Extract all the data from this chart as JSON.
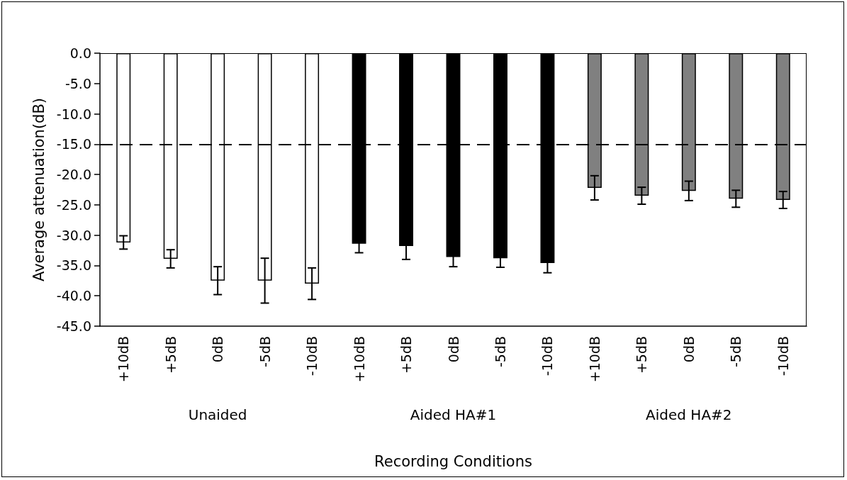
{
  "chart_data": {
    "type": "bar",
    "xlabel": "Recording Conditions",
    "ylabel": "Average attenuation(dB)",
    "categories": [
      "+10dB",
      "+5dB",
      "0dB",
      "-5dB",
      "-10dB",
      "+10dB",
      "+5dB",
      "0dB",
      "-5dB",
      "-10dB",
      "+10dB",
      "+5dB",
      "0dB",
      "-5dB",
      "-10dB"
    ],
    "values": [
      -31.2,
      -33.9,
      -37.5,
      -37.5,
      -38.0,
      -31.4,
      -31.8,
      -33.6,
      -33.8,
      -34.6,
      -22.2,
      -23.5,
      -22.7,
      -24.0,
      -24.2
    ],
    "errors": [
      1.1,
      1.5,
      2.3,
      3.7,
      2.6,
      1.5,
      2.2,
      1.6,
      1.5,
      1.6,
      2.0,
      1.4,
      1.6,
      1.4,
      1.4
    ],
    "colors": [
      "#ffffff",
      "#ffffff",
      "#ffffff",
      "#ffffff",
      "#ffffff",
      "#000000",
      "#000000",
      "#000000",
      "#000000",
      "#000000",
      "#808080",
      "#808080",
      "#808080",
      "#808080",
      "#808080"
    ],
    "annotations": [
      "Unaided",
      "Aided HA#1",
      "Aided HA#2"
    ],
    "ylim": [
      -45,
      0
    ],
    "yticks": [
      {
        "value": -45,
        "label": "-45.0"
      },
      {
        "value": -40,
        "label": "-40.0"
      },
      {
        "value": -35,
        "label": "-35.0"
      },
      {
        "value": -30,
        "label": "-30.0"
      },
      {
        "value": -25,
        "label": "-25.0"
      },
      {
        "value": -20,
        "label": "-20.0"
      },
      {
        "value": -15,
        "label": "-15.0"
      },
      {
        "value": -10,
        "label": "-10.0"
      },
      {
        "value": -5,
        "label": "-5.0"
      },
      {
        "value": 0,
        "label": "0.0"
      }
    ],
    "ref_lines": [
      {
        "axis": "y",
        "value": -15,
        "color": "#000000",
        "line_style": "dashed"
      }
    ],
    "grid": false
  }
}
